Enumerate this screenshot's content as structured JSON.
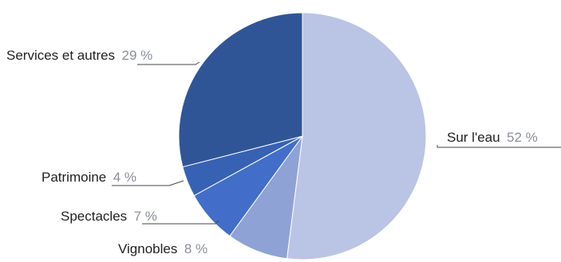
{
  "chart_data": {
    "type": "pie",
    "start_angle_deg": 0,
    "direction": "clockwise",
    "slices": [
      {
        "label": "Sur l'eau",
        "value": 52,
        "value_text": "52 %",
        "color": "#BAC4E4"
      },
      {
        "label": "Vignobles",
        "value": 8,
        "value_text": "8 %",
        "color": "#8EA2D6"
      },
      {
        "label": "Spectacles",
        "value": 7,
        "value_text": "7 %",
        "color": "#426EC9"
      },
      {
        "label": "Patrimoine",
        "value": 4,
        "value_text": "4 %",
        "color": "#3762B4"
      },
      {
        "label": "Services et autres",
        "value": 29,
        "value_text": "29 %",
        "color": "#305597"
      }
    ]
  }
}
